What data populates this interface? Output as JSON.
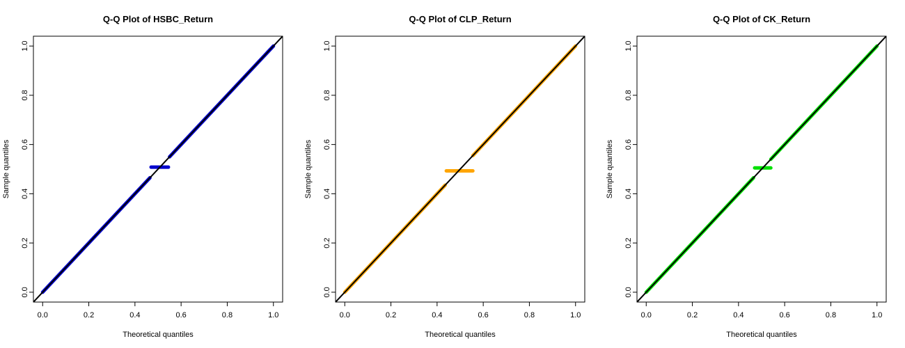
{
  "chart_data": [
    {
      "type": "scatter",
      "title": "Q-Q Plot of HSBC_Return",
      "xlabel": "Theoretical quantiles",
      "ylabel": "Sample quantiles",
      "xlim": [
        -0.04,
        1.04
      ],
      "ylim": [
        -0.04,
        1.04
      ],
      "xticks": [
        "0.0",
        "0.2",
        "0.4",
        "0.6",
        "0.8",
        "1.0"
      ],
      "yticks": [
        "0.0",
        "0.2",
        "0.4",
        "0.6",
        "0.8",
        "1.0"
      ],
      "point_color": "#0000CD",
      "reference_line": {
        "slope": 1,
        "intercept": 0,
        "color": "#000000"
      },
      "series": [
        {
          "x": [
            0.0,
            0.465
          ],
          "y": [
            0.0,
            0.465
          ]
        },
        {
          "x": [
            0.47,
            0.545
          ],
          "y": [
            0.508,
            0.508
          ]
        },
        {
          "x": [
            0.55,
            1.0
          ],
          "y": [
            0.55,
            1.0
          ]
        }
      ]
    },
    {
      "type": "scatter",
      "title": "Q-Q Plot of CLP_Return",
      "xlabel": "Theoretical quantiles",
      "ylabel": "Sample quantiles",
      "xlim": [
        -0.04,
        1.04
      ],
      "ylim": [
        -0.04,
        1.04
      ],
      "xticks": [
        "0.0",
        "0.2",
        "0.4",
        "0.6",
        "0.8",
        "1.0"
      ],
      "yticks": [
        "0.0",
        "0.2",
        "0.4",
        "0.6",
        "0.8",
        "1.0"
      ],
      "point_color": "#FFA500",
      "reference_line": {
        "slope": 1,
        "intercept": 0,
        "color": "#000000"
      },
      "series": [
        {
          "x": [
            0.0,
            0.435
          ],
          "y": [
            0.0,
            0.435
          ]
        },
        {
          "x": [
            0.44,
            0.555
          ],
          "y": [
            0.493,
            0.493
          ]
        },
        {
          "x": [
            0.555,
            1.0
          ],
          "y": [
            0.555,
            1.0
          ]
        }
      ]
    },
    {
      "type": "scatter",
      "title": "Q-Q Plot of CK_Return",
      "xlabel": "Theoretical quantiles",
      "ylabel": "Sample quantiles",
      "xlim": [
        -0.04,
        1.04
      ],
      "ylim": [
        -0.04,
        1.04
      ],
      "xticks": [
        "0.0",
        "0.2",
        "0.4",
        "0.6",
        "0.8",
        "1.0"
      ],
      "yticks": [
        "0.0",
        "0.2",
        "0.4",
        "0.6",
        "0.8",
        "1.0"
      ],
      "point_color": "#00E000",
      "reference_line": {
        "slope": 1,
        "intercept": 0,
        "color": "#000000"
      },
      "series": [
        {
          "x": [
            0.0,
            0.465
          ],
          "y": [
            0.0,
            0.465
          ]
        },
        {
          "x": [
            0.47,
            0.54
          ],
          "y": [
            0.505,
            0.505
          ]
        },
        {
          "x": [
            0.54,
            1.0
          ],
          "y": [
            0.54,
            1.0
          ]
        }
      ]
    }
  ]
}
